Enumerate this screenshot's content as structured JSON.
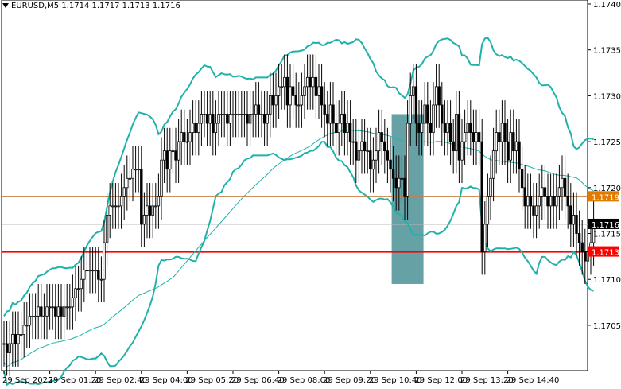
{
  "header": {
    "symbol": "EURUSD,M5",
    "ohlc": "1.1714 1.1717 1.1713 1.1716"
  },
  "chart_data": {
    "type": "candlestick",
    "ylim": [
      1.1701,
      1.1741
    ],
    "y_ticks": [
      "1.1740",
      "1.1735",
      "1.1730",
      "1.1725",
      "1.1720",
      "1.1715",
      "1.1710",
      "1.1705"
    ],
    "x_ticks": [
      "29 Sep 2025",
      "29 Sep 01:20",
      "29 Sep 02:40",
      "29 Sep 04:00",
      "29 Sep 05:20",
      "29 Sep 06:40",
      "29 Sep 08:00",
      "29 Sep 09:20",
      "29 Sep 10:40",
      "29 Sep 12:00",
      "29 Sep 13:20",
      "29 Sep 14:40"
    ],
    "x_tick_index": [
      0,
      16,
      32,
      48,
      64,
      80,
      96,
      112,
      128,
      144,
      160,
      176
    ],
    "price_labels": [
      {
        "text": "1.1719",
        "value": 1.1719,
        "color": "#e07b00"
      },
      {
        "text": "1.1716",
        "value": 1.1716,
        "color": "#000000"
      },
      {
        "text": "1.1713",
        "value": 1.1713,
        "color": "#ff0000"
      }
    ],
    "hlines": [
      {
        "value": 1.1719,
        "color": "#c8804a"
      },
      {
        "value": 1.1716,
        "color": "#bbbbbb"
      },
      {
        "value": 1.1713,
        "color": "#ff0000"
      }
    ],
    "highlight": {
      "from_index": 136,
      "to_index": 146,
      "top": 1.1728,
      "bottom": 1.17095,
      "color": "#3f8a8f"
    },
    "close": [
      1.1703,
      1.1702,
      1.1703,
      1.1704,
      1.1703,
      1.1704,
      1.1704,
      1.1705,
      1.1705,
      1.1706,
      1.1706,
      1.1706,
      1.1707,
      1.1706,
      1.1706,
      1.1707,
      1.1707,
      1.1707,
      1.1706,
      1.1707,
      1.1706,
      1.1707,
      1.1707,
      1.1707,
      1.1708,
      1.1709,
      1.1709,
      1.171,
      1.1711,
      1.1711,
      1.1711,
      1.1711,
      1.1711,
      1.171,
      1.171,
      1.1714,
      1.1717,
      1.1718,
      1.1718,
      1.1718,
      1.1718,
      1.1719,
      1.172,
      1.1721,
      1.1721,
      1.1722,
      1.1722,
      1.1722,
      1.1716,
      1.1717,
      1.1718,
      1.1717,
      1.1718,
      1.1718,
      1.1719,
      1.1723,
      1.1724,
      1.1722,
      1.1724,
      1.1724,
      1.1723,
      1.1725,
      1.1726,
      1.1725,
      1.1725,
      1.1726,
      1.1727,
      1.1726,
      1.1727,
      1.1728,
      1.1728,
      1.1727,
      1.1728,
      1.1726,
      1.1727,
      1.1728,
      1.1728,
      1.1728,
      1.1727,
      1.1728,
      1.1728,
      1.1728,
      1.1728,
      1.1728,
      1.1728,
      1.1727,
      1.1728,
      1.1728,
      1.1729,
      1.1728,
      1.1728,
      1.1727,
      1.1728,
      1.173,
      1.1729,
      1.173,
      1.1731,
      1.1731,
      1.1732,
      1.1729,
      1.1731,
      1.173,
      1.1729,
      1.1729,
      1.173,
      1.1731,
      1.1732,
      1.1731,
      1.1732,
      1.173,
      1.1731,
      1.1729,
      1.1728,
      1.1727,
      1.1729,
      1.1727,
      1.1726,
      1.1727,
      1.1728,
      1.1726,
      1.1727,
      1.1725,
      1.1725,
      1.1723,
      1.1724,
      1.1725,
      1.1724,
      1.1724,
      1.1722,
      1.1723,
      1.1724,
      1.1726,
      1.1725,
      1.1724,
      1.1723,
      1.1722,
      1.1721,
      1.172,
      1.1721,
      1.1721,
      1.1719,
      1.1727,
      1.173,
      1.1731,
      1.1727,
      1.1726,
      1.1727,
      1.1729,
      1.1727,
      1.1726,
      1.1729,
      1.1731,
      1.1729,
      1.1727,
      1.1726,
      1.1727,
      1.1725,
      1.1724,
      1.1728,
      1.1723,
      1.1725,
      1.1726,
      1.1727,
      1.1726,
      1.1725,
      1.1726,
      1.1725,
      1.1713,
      1.1716,
      1.1719,
      1.1721,
      1.1724,
      1.1726,
      1.1725,
      1.1727,
      1.1725,
      1.1723,
      1.1726,
      1.1724,
      1.1725,
      1.1722,
      1.172,
      1.1718,
      1.1719,
      1.1718,
      1.1717,
      1.1718,
      1.1719,
      1.172,
      1.1719,
      1.1718,
      1.1719,
      1.1718,
      1.1719,
      1.172,
      1.1721,
      1.1719,
      1.1718,
      1.1716,
      1.1717,
      1.1715,
      1.1714,
      1.1713,
      1.1712,
      1.1713,
      1.1714,
      1.1716
    ],
    "upper_band": [],
    "lower_band": [],
    "ma_line": []
  }
}
